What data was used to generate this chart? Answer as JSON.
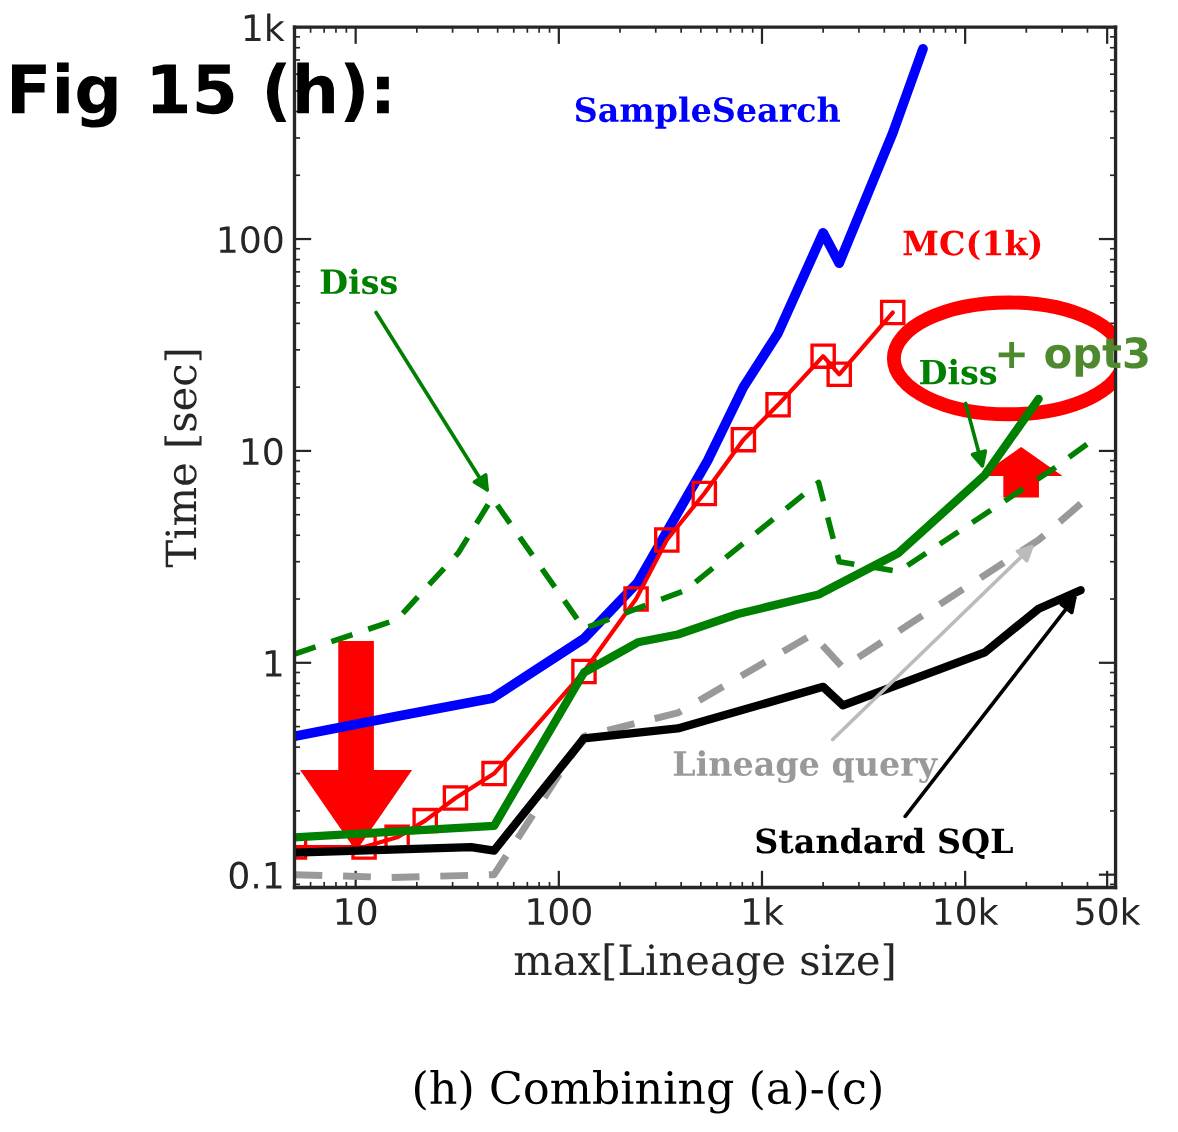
{
  "chart_data": {
    "type": "line",
    "xlabel": "max[Lineage size]",
    "ylabel": "Time [sec]",
    "log": "xy",
    "grid": false,
    "legend": false,
    "xlim": [
      5,
      55000
    ],
    "ylim": [
      0.087,
      1000
    ],
    "xticks": [
      10,
      100,
      {
        "value": 1000,
        "label": "1k"
      },
      {
        "value": 10000,
        "label": "10k"
      },
      {
        "value": 50000,
        "label": "50k"
      }
    ],
    "yticks": [
      0.1,
      1,
      10,
      100,
      {
        "value": 1000,
        "label": "1k"
      }
    ],
    "annotations": [
      "Fig 15 (h):",
      {
        "text": "+ opt3",
        "x": 23000,
        "y": 17.6
      },
      "(h) Combining (a)-(c)"
    ],
    "series": [
      {
        "name": "SampleSearch",
        "color": "#0000ff",
        "line_style": "solid",
        "marker": "none",
        "x": [
          5,
          16,
          47,
          133,
          245,
          540,
          810,
          1200,
          2000,
          2400,
          4400,
          6200
        ],
        "values": [
          0.45,
          0.56,
          0.68,
          1.3,
          2.4,
          9,
          20,
          36,
          107,
          77,
          316,
          790
        ]
      },
      {
        "name": "MC(1k)",
        "color": "#ff0000",
        "line_style": "solid",
        "marker": "square",
        "x": [
          5,
          11,
          16,
          22,
          31,
          48,
          133,
          240,
          340,
          520,
          810,
          1200,
          2000,
          2400,
          4400
        ],
        "values": [
          0.135,
          0.135,
          0.15,
          0.18,
          0.23,
          0.3,
          0.91,
          2.0,
          3.8,
          6.3,
          11.3,
          16.5,
          28,
          23,
          45
        ]
      },
      {
        "name": "Diss",
        "color": "#008000",
        "line_style": "dashed",
        "marker": "none",
        "x": [
          5,
          16,
          32,
          47,
          133,
          420,
          1900,
          2400,
          4700,
          27000,
          40000
        ],
        "values": [
          1.1,
          1.6,
          3.3,
          6,
          1.45,
          2.2,
          7.1,
          3.0,
          2.7,
          8.2,
          10.8
        ]
      },
      {
        "name": "Diss",
        "color": "#008000",
        "line_style": "solid",
        "marker": "none",
        "x": [
          5,
          48,
          133,
          245,
          385,
          760,
          1900,
          4700,
          12500,
          23000
        ],
        "values": [
          0.15,
          0.17,
          0.9,
          1.25,
          1.36,
          1.7,
          2.1,
          3.3,
          7.7,
          17.6
        ]
      },
      {
        "name": "Lineage query",
        "color": "#999999",
        "line_style": "dashed",
        "marker": "none",
        "x": [
          5,
          15,
          48,
          133,
          385,
          1770,
          2500,
          23000,
          40000
        ],
        "values": [
          0.1,
          0.097,
          0.1,
          0.45,
          0.58,
          1.36,
          0.95,
          3.8,
          6
        ]
      },
      {
        "name": "Standard SQL",
        "color": "#000000",
        "line_style": "solid",
        "marker": "none",
        "x": [
          5,
          37,
          48,
          133,
          385,
          2000,
          2500,
          12500,
          23000,
          37000
        ],
        "values": [
          0.127,
          0.135,
          0.13,
          0.44,
          0.49,
          0.77,
          0.63,
          1.12,
          1.8,
          2.2
        ]
      }
    ]
  }
}
